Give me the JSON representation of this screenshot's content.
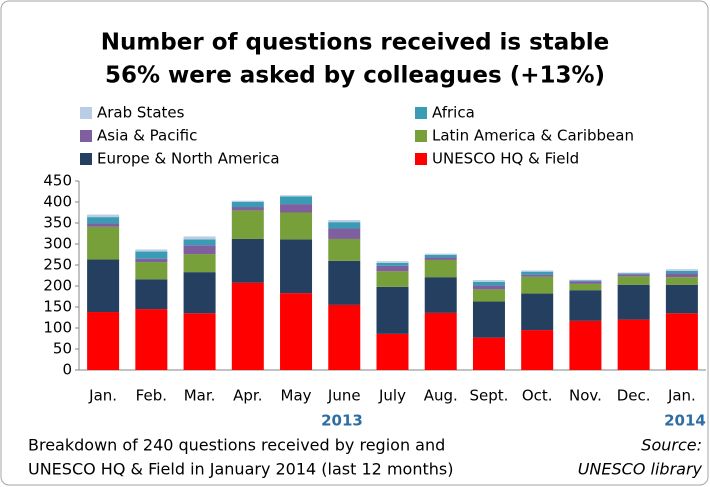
{
  "chart_data": {
    "type": "stacked_bar",
    "title": [
      "Number of questions received is stable",
      "56% were asked by colleagues (+13%)"
    ],
    "categories": [
      "Jan.",
      "Feb.",
      "Mar.",
      "Apr.",
      "May",
      "June",
      "July",
      "Aug.",
      "Sept.",
      "Oct.",
      "Nov.",
      "Dec.",
      "Jan."
    ],
    "series": [
      {
        "name": "UNESCO HQ & Field",
        "color": "#ff0000",
        "values": [
          138,
          145,
          135,
          208,
          183,
          155,
          86,
          136,
          77,
          95,
          117,
          120,
          135
        ]
      },
      {
        "name": "Europe & North America",
        "color": "#243f60",
        "values": [
          125,
          71,
          98,
          104,
          128,
          105,
          112,
          85,
          86,
          87,
          73,
          83,
          68
        ]
      },
      {
        "name": "Latin America & Caribbean",
        "color": "#77a03a",
        "values": [
          78,
          41,
          43,
          68,
          64,
          52,
          37,
          41,
          29,
          40,
          15,
          20,
          18
        ]
      },
      {
        "name": "Asia & Pacific",
        "color": "#7f5fa0",
        "values": [
          8,
          8,
          21,
          8,
          20,
          25,
          13,
          6,
          9,
          5,
          6,
          5,
          9
        ]
      },
      {
        "name": "Africa",
        "color": "#3a9bb5",
        "values": [
          15,
          17,
          14,
          12,
          18,
          15,
          7,
          6,
          9,
          7,
          2,
          2,
          6
        ]
      },
      {
        "name": "Arab States",
        "color": "#b9cde5",
        "values": [
          6,
          5,
          7,
          3,
          3,
          5,
          4,
          3,
          4,
          3,
          2,
          2,
          4
        ]
      }
    ],
    "ylim": [
      0,
      450
    ],
    "yticks": [
      0,
      50,
      100,
      150,
      200,
      250,
      300,
      350,
      400,
      450
    ],
    "annotations": [
      "2013",
      "2014"
    ],
    "footnote": [
      "Breakdown of 240 questions received by region and",
      "UNESCO HQ & Field in January 2014 (last 12 months)"
    ],
    "source": [
      "Source:",
      "UNESCO library"
    ]
  }
}
